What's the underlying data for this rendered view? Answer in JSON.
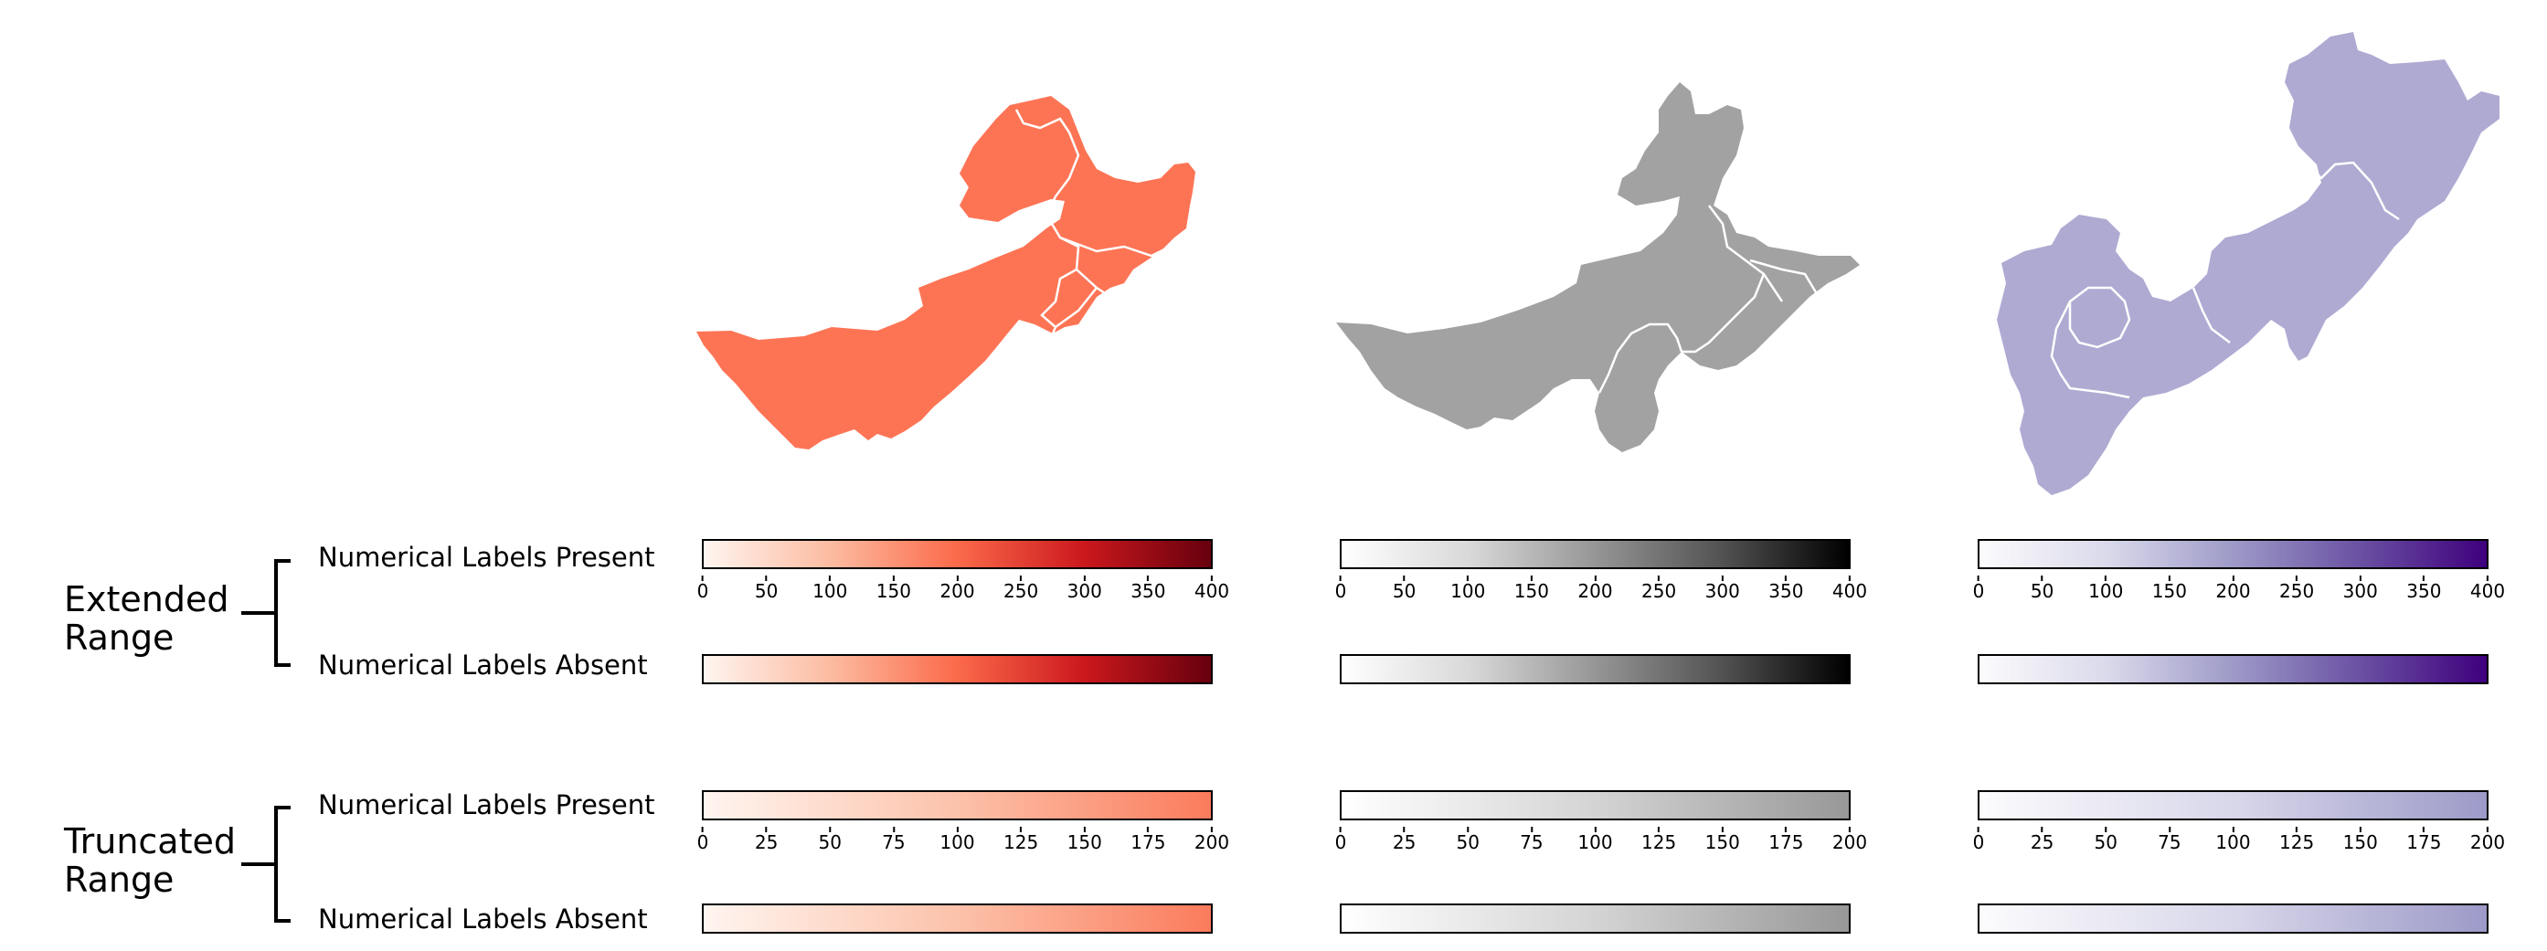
{
  "groups": [
    {
      "title": "Extended\nRange",
      "rows": [
        {
          "label": "Numerical Labels Present",
          "ticks": [
            "0",
            "50",
            "100",
            "150",
            "200",
            "250",
            "300",
            "350",
            "400"
          ]
        },
        {
          "label": "Numerical Labels Absent",
          "ticks": []
        }
      ]
    },
    {
      "title": "Truncated\nRange",
      "rows": [
        {
          "label": "Numerical Labels Present",
          "ticks": [
            "0",
            "25",
            "50",
            "75",
            "100",
            "125",
            "150",
            "175",
            "200"
          ]
        },
        {
          "label": "Numerical Labels Absent",
          "ticks": []
        }
      ]
    }
  ],
  "columns": [
    {
      "palette": "reds",
      "map_color": "#fd7455",
      "map_region": "northeast-inner-mongolia",
      "extended_gradient": [
        "#fff5f0",
        "#fcbba1",
        "#fb6a4a",
        "#cb181d",
        "#67000d"
      ],
      "truncated_gradient": [
        "#fff5f0",
        "#fcc2aa",
        "#fb7b5c"
      ]
    },
    {
      "palette": "greys",
      "map_color": "#a2a2a2",
      "map_region": "inner-mongolia-hebei-liaoning",
      "extended_gradient": [
        "#ffffff",
        "#d9d9d9",
        "#969696",
        "#525252",
        "#000000"
      ],
      "truncated_gradient": [
        "#ffffff",
        "#d4d4d4",
        "#989898"
      ]
    },
    {
      "palette": "purples",
      "map_color": "#aeaad2",
      "map_region": "north-china-liaoning",
      "extended_gradient": [
        "#fcfbfd",
        "#dadaeb",
        "#9e9ac8",
        "#6a51a3",
        "#3f007d"
      ],
      "truncated_gradient": [
        "#fcfbfd",
        "#d8d7ea",
        "#9d9ac8"
      ]
    }
  ]
}
